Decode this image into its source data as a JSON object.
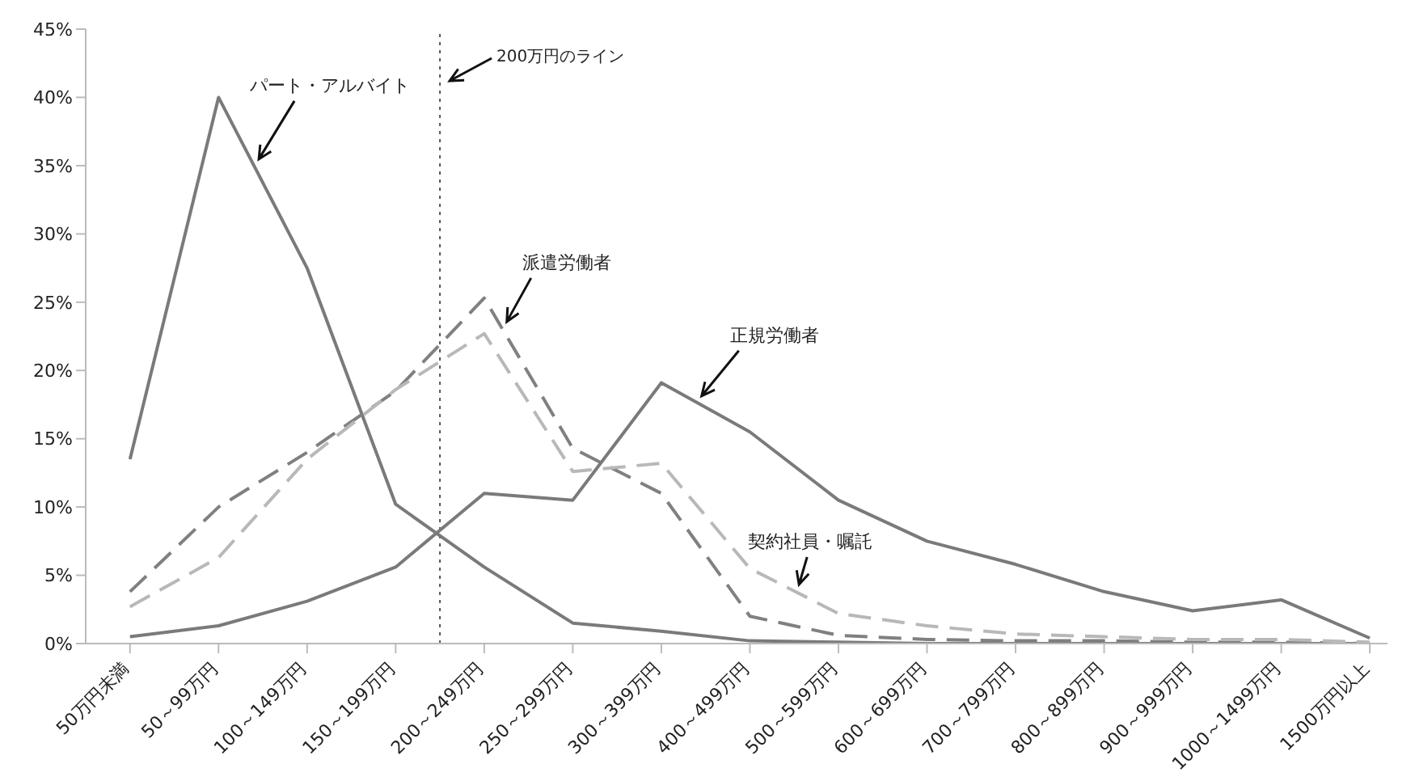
{
  "chart_data": {
    "type": "line",
    "categories": [
      "50万円未満",
      "50～99万円",
      "100～149万円",
      "150～199万円",
      "200～249万円",
      "250～299万円",
      "300～399万円",
      "400～499万円",
      "500～599万円",
      "600～699万円",
      "700～799万円",
      "800～899万円",
      "900～999万円",
      "1000～1499万円",
      "1500万円以上"
    ],
    "series": [
      {
        "name": "パート・アルバイト",
        "color": "#7a7a7a",
        "line_style": "solid",
        "values": [
          13.5,
          40,
          27.5,
          10.2,
          5.6,
          1.5,
          0.9,
          0.2,
          0.1,
          0,
          0,
          0,
          0,
          0,
          0
        ]
      },
      {
        "name": "派遣労働者",
        "color": "#808080",
        "line_style": "dashed",
        "values": [
          3.8,
          10,
          14,
          18.5,
          25.3,
          14.3,
          11,
          2,
          0.6,
          0.3,
          0.2,
          0.2,
          0.1,
          0.1,
          0
        ]
      },
      {
        "name": "正規労働者",
        "color": "#7a7a7a",
        "line_style": "solid",
        "values": [
          0.5,
          1.3,
          3.1,
          5.6,
          11,
          10.5,
          19.1,
          15.5,
          10.5,
          7.5,
          5.8,
          3.8,
          2.4,
          3.2,
          0.4
        ]
      },
      {
        "name": "契約社員・嘱託",
        "color": "#b8b8b8",
        "line_style": "dashed",
        "values": [
          2.7,
          6.3,
          13.5,
          18.6,
          22.7,
          12.6,
          13.2,
          5.5,
          2.2,
          1.3,
          0.7,
          0.5,
          0.3,
          0.3,
          0.1
        ]
      }
    ],
    "ylim": [
      0,
      45
    ],
    "yticks": [
      {
        "value": 0,
        "label": "0%"
      },
      {
        "value": 5,
        "label": "5%"
      },
      {
        "value": 10,
        "label": "10%"
      },
      {
        "value": 15,
        "label": "15%"
      },
      {
        "value": 20,
        "label": "20%"
      },
      {
        "value": 25,
        "label": "25%"
      },
      {
        "value": 30,
        "label": "30%"
      },
      {
        "value": 35,
        "label": "35%"
      },
      {
        "value": 40,
        "label": "40%"
      },
      {
        "value": 45,
        "label": "45%"
      }
    ],
    "annotations": [
      "200万円のライン"
    ],
    "grid": false,
    "legend": false,
    "marker": "none"
  }
}
